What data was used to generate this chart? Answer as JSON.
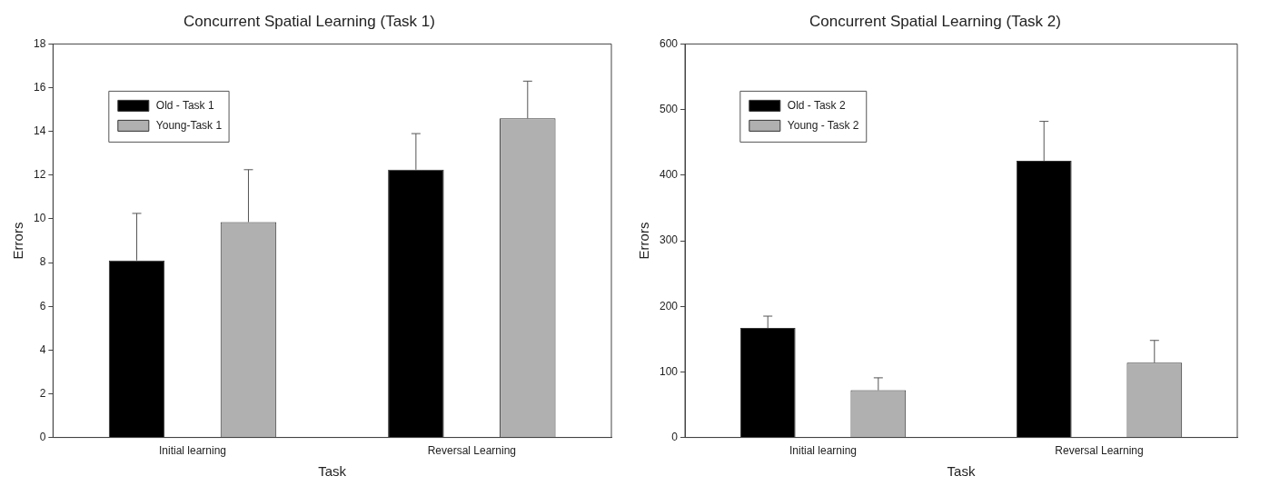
{
  "chart_data": [
    {
      "type": "bar",
      "title": "Concurrent Spatial Learning (Task 1)",
      "xlabel": "Task",
      "ylabel": "Errors",
      "categories": [
        "Initial learning",
        "Reversal Learning"
      ],
      "ylim": [
        0,
        18
      ],
      "yticks": [
        0,
        2,
        4,
        6,
        8,
        10,
        12,
        14,
        16,
        18
      ],
      "grid": false,
      "legend": "top left",
      "series": [
        {
          "name": "Old - Task 1",
          "color": "#000000",
          "values": [
            8.1,
            12.25
          ],
          "errors": [
            [
              8.1,
              10.25
            ],
            [
              12.25,
              13.9
            ]
          ]
        },
        {
          "name": "Young-Task 1",
          "color": "#b0b0b0",
          "values": [
            9.85,
            14.6
          ],
          "errors": [
            [
              9.85,
              12.25
            ],
            [
              14.6,
              16.3
            ]
          ]
        }
      ]
    },
    {
      "type": "bar",
      "title": "Concurrent Spatial Learning (Task 2)",
      "xlabel": "Task",
      "ylabel": "Errors",
      "categories": [
        "Initial learning",
        "Reversal Learning"
      ],
      "ylim": [
        0,
        600
      ],
      "yticks": [
        0,
        100,
        200,
        300,
        400,
        500,
        600
      ],
      "grid": false,
      "legend": "top left",
      "series": [
        {
          "name": "Old - Task 2",
          "color": "#000000",
          "values": [
            167,
            422
          ],
          "errors": [
            [
              167,
              185
            ],
            [
              422,
              482
            ]
          ]
        },
        {
          "name": "Young - Task 2",
          "color": "#b0b0b0",
          "values": [
            72,
            114
          ],
          "errors": [
            [
              72,
              91
            ],
            [
              114,
              148
            ]
          ]
        }
      ]
    }
  ]
}
